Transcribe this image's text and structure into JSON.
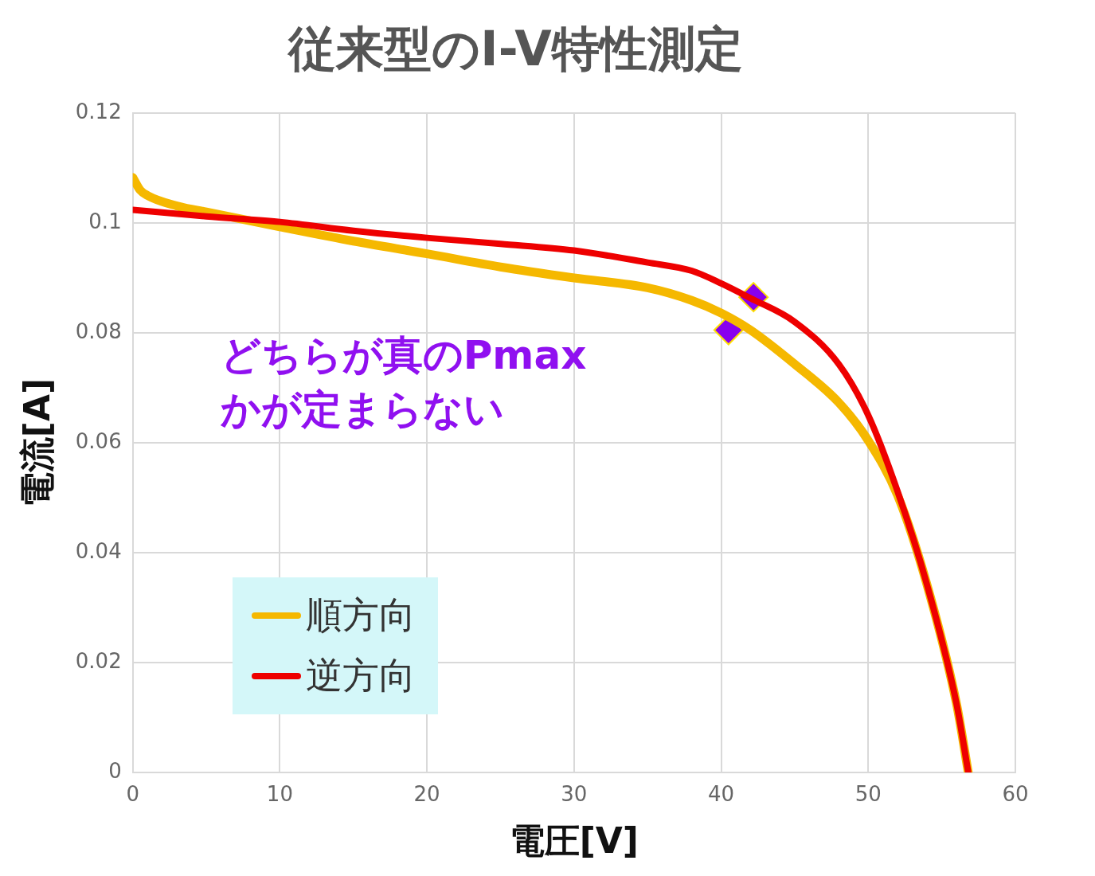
{
  "chart_data": {
    "type": "line",
    "title": "従来型のI-V特性測定",
    "xlabel": "電圧[V]",
    "ylabel": "電流[A]",
    "xlim": [
      0,
      60
    ],
    "xticks": [
      0,
      10,
      20,
      30,
      40,
      50,
      60
    ],
    "ylim": [
      0,
      0.12
    ],
    "yticks": [
      0,
      0.02,
      0.04,
      0.06,
      0.08,
      0.1,
      0.12
    ],
    "grid": true,
    "legend": "bottom left",
    "line_style": "solid",
    "marker": "none",
    "annotations": [
      "どちらが真のPmax\nかが定まらない"
    ],
    "series": [
      {
        "name": "順方向",
        "color": "#f5b800",
        "x": [
          0,
          0.5,
          1,
          3,
          5,
          10,
          15,
          20,
          25,
          30,
          35,
          38,
          40,
          42,
          45,
          48,
          50,
          52,
          54,
          56,
          56.8
        ],
        "values": [
          0.1083,
          0.106,
          0.105,
          0.1031,
          0.102,
          0.0993,
          0.0967,
          0.0944,
          0.092,
          0.09,
          0.0882,
          0.0859,
          0.0836,
          0.0805,
          0.0743,
          0.0673,
          0.0604,
          0.0504,
          0.0341,
          0.0125,
          0
        ]
      },
      {
        "name": "逆方向",
        "color": "#ee0000",
        "x": [
          0,
          5,
          10,
          15,
          20,
          25,
          30,
          35,
          38,
          40,
          42,
          45,
          48,
          50,
          52,
          54,
          56,
          56.8
        ],
        "values": [
          0.1024,
          0.1012,
          0.1002,
          0.0986,
          0.0973,
          0.0962,
          0.095,
          0.0928,
          0.0913,
          0.089,
          0.0863,
          0.082,
          0.0743,
          0.065,
          0.0511,
          0.0341,
          0.0125,
          0
        ]
      },
      {
        "type": "scatter",
        "marker": "diamond",
        "color": "#8800ee",
        "x": [
          42.2,
          40.5
        ],
        "values": [
          0.0865,
          0.0805
        ]
      }
    ]
  }
}
